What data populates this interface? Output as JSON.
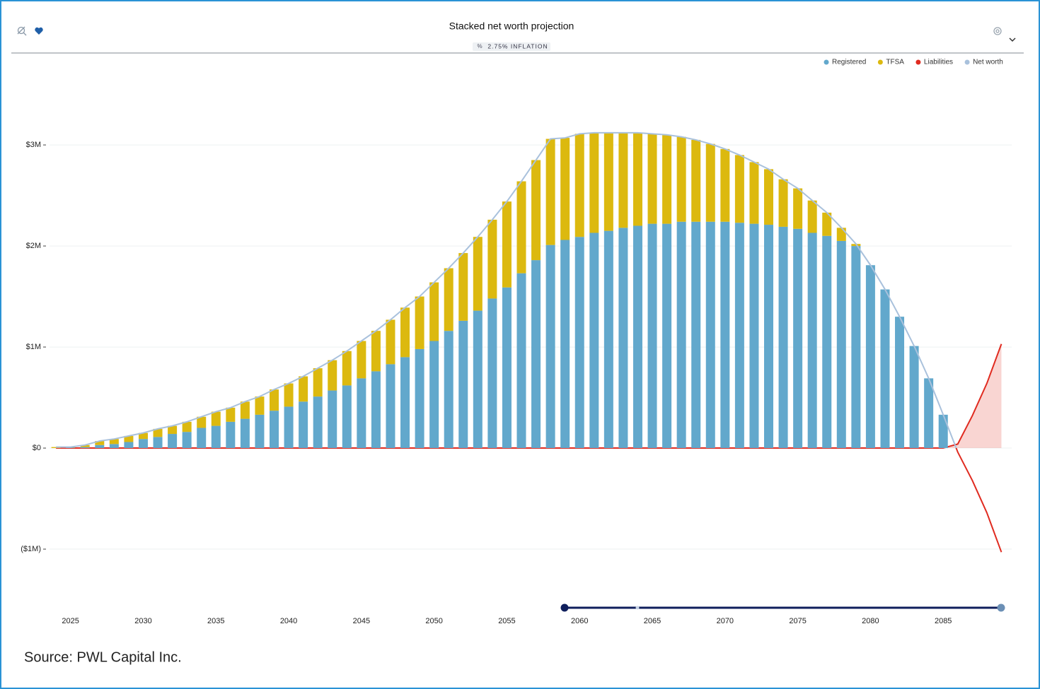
{
  "chart_data": {
    "type": "stacked-bar-line",
    "title": "Stacked net worth projection",
    "subtitle": "2.75% INFLATION",
    "source": "Source: PWL Capital Inc.",
    "x": [
      2024,
      2025,
      2026,
      2027,
      2028,
      2029,
      2030,
      2031,
      2032,
      2033,
      2034,
      2035,
      2036,
      2037,
      2038,
      2039,
      2040,
      2041,
      2042,
      2043,
      2044,
      2045,
      2046,
      2047,
      2048,
      2049,
      2050,
      2051,
      2052,
      2053,
      2054,
      2055,
      2056,
      2057,
      2058,
      2059,
      2060,
      2061,
      2062,
      2063,
      2064,
      2065,
      2066,
      2067,
      2068,
      2069,
      2070,
      2071,
      2072,
      2073,
      2074,
      2075,
      2076,
      2077,
      2078,
      2079,
      2080,
      2081,
      2082,
      2083,
      2084,
      2085,
      2086,
      2087,
      2088,
      2089
    ],
    "xlim": [
      2022,
      2090
    ],
    "xticks": [
      2025,
      2030,
      2035,
      2040,
      2045,
      2050,
      2055,
      2060,
      2065,
      2070,
      2075,
      2080,
      2085
    ],
    "ylim": [
      -1150000,
      3700000
    ],
    "yticks": [
      {
        "value": -1000000,
        "label": "($1M)"
      },
      {
        "value": 0,
        "label": "$0"
      },
      {
        "value": 1000000,
        "label": "$1M"
      },
      {
        "value": 2000000,
        "label": "$2M"
      },
      {
        "value": 3000000,
        "label": "$3M"
      }
    ],
    "grid": true,
    "legend": "top-right",
    "series": [
      {
        "name": "Registered",
        "color": "#62a8cc",
        "kind": "bar",
        "values": [
          0,
          5000,
          10000,
          30000,
          40000,
          60000,
          90000,
          110000,
          140000,
          160000,
          200000,
          220000,
          260000,
          290000,
          330000,
          370000,
          410000,
          460000,
          510000,
          570000,
          620000,
          690000,
          760000,
          830000,
          900000,
          980000,
          1060000,
          1160000,
          1260000,
          1360000,
          1480000,
          1590000,
          1730000,
          1860000,
          2010000,
          2060000,
          2090000,
          2130000,
          2150000,
          2180000,
          2200000,
          2220000,
          2220000,
          2240000,
          2240000,
          2240000,
          2240000,
          2230000,
          2220000,
          2210000,
          2190000,
          2170000,
          2130000,
          2100000,
          2050000,
          2000000,
          1810000,
          1570000,
          1300000,
          1010000,
          690000,
          330000,
          0,
          0,
          0,
          0
        ]
      },
      {
        "name": "TFSA",
        "color": "#dcb90f",
        "kind": "bar",
        "values": [
          10000,
          5000,
          20000,
          40000,
          50000,
          60000,
          60000,
          80000,
          80000,
          100000,
          110000,
          140000,
          140000,
          170000,
          180000,
          210000,
          230000,
          250000,
          280000,
          300000,
          340000,
          370000,
          400000,
          440000,
          490000,
          520000,
          580000,
          620000,
          670000,
          730000,
          780000,
          850000,
          910000,
          990000,
          1050000,
          1010000,
          1020000,
          990000,
          970000,
          940000,
          920000,
          890000,
          880000,
          840000,
          810000,
          770000,
          720000,
          670000,
          610000,
          550000,
          470000,
          400000,
          320000,
          230000,
          130000,
          20000,
          0,
          0,
          0,
          0,
          0,
          0,
          0,
          0,
          0,
          0
        ]
      },
      {
        "name": "Liabilities",
        "color": "#e02b20",
        "kind": "area",
        "values": [
          0,
          0,
          0,
          0,
          0,
          0,
          0,
          0,
          0,
          0,
          0,
          0,
          0,
          0,
          0,
          0,
          0,
          0,
          0,
          0,
          0,
          0,
          0,
          0,
          0,
          0,
          0,
          0,
          0,
          0,
          0,
          0,
          0,
          0,
          0,
          0,
          0,
          0,
          0,
          0,
          0,
          0,
          0,
          0,
          0,
          0,
          0,
          0,
          0,
          0,
          0,
          0,
          0,
          0,
          0,
          0,
          0,
          0,
          0,
          0,
          0,
          0,
          40000,
          320000,
          640000,
          1030000
        ]
      },
      {
        "name": "Net worth",
        "color": "#a9c1dc",
        "kind": "line",
        "values": [
          10000,
          10000,
          30000,
          70000,
          90000,
          120000,
          150000,
          190000,
          220000,
          260000,
          310000,
          360000,
          400000,
          460000,
          510000,
          580000,
          640000,
          710000,
          790000,
          870000,
          960000,
          1060000,
          1160000,
          1270000,
          1390000,
          1500000,
          1640000,
          1780000,
          1930000,
          2090000,
          2260000,
          2440000,
          2640000,
          2850000,
          3060000,
          3070000,
          3110000,
          3120000,
          3120000,
          3120000,
          3120000,
          3110000,
          3100000,
          3080000,
          3050000,
          3010000,
          2960000,
          2900000,
          2830000,
          2760000,
          2660000,
          2570000,
          2450000,
          2330000,
          2180000,
          2020000,
          1810000,
          1570000,
          1300000,
          1010000,
          690000,
          330000,
          -40000,
          -320000,
          -640000,
          -1030000
        ]
      }
    ]
  }
}
